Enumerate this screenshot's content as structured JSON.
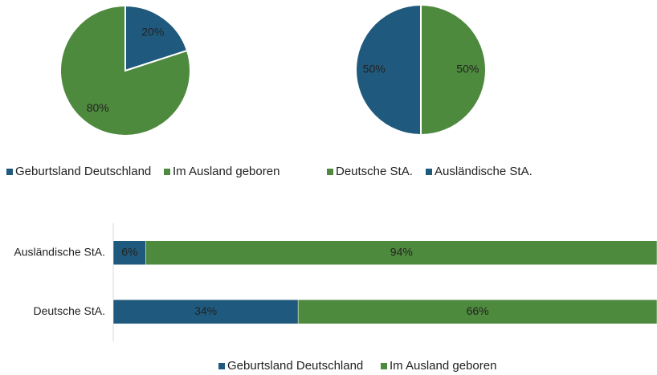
{
  "chart_data": [
    {
      "type": "pie",
      "series": [
        {
          "name": "Geburtsland Deutschland",
          "color": "#1f5a7e",
          "values": [
            20
          ],
          "value_labels": [
            "20%"
          ]
        },
        {
          "name": "Im Ausland geboren",
          "color": "#4e8a3e",
          "values": [
            80
          ],
          "value_labels": [
            "80%"
          ]
        }
      ]
    },
    {
      "type": "pie",
      "series": [
        {
          "name": "Deutsche StA.",
          "color": "#4e8a3e",
          "values": [
            50
          ],
          "value_labels": [
            "50%"
          ]
        },
        {
          "name": "Ausländische StA.",
          "color": "#1f5a7e",
          "values": [
            50
          ],
          "value_labels": [
            "50%"
          ]
        }
      ]
    },
    {
      "type": "stacked_bar_horizontal",
      "categories": [
        "Ausländische StA.",
        "Deutsche StA."
      ],
      "series": [
        {
          "name": "Geburtsland Deutschland",
          "color": "#1f5a7e",
          "values": [
            6,
            34
          ],
          "value_labels": [
            "6%",
            "34%"
          ]
        },
        {
          "name": "Im Ausland geboren",
          "color": "#4e8a3e",
          "values": [
            94,
            66
          ],
          "value_labels": [
            "94%",
            "66%"
          ]
        }
      ]
    }
  ]
}
